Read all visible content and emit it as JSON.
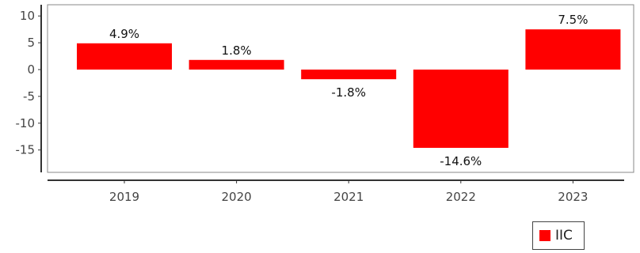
{
  "chart_data": {
    "type": "bar",
    "categories": [
      "2019",
      "2020",
      "2021",
      "2022",
      "2023"
    ],
    "series": [
      {
        "name": "IIC",
        "values": [
          4.9,
          1.8,
          -1.8,
          -14.6,
          7.5
        ]
      }
    ],
    "data_labels": [
      "4.9%",
      "1.8%",
      "-1.8%",
      "-14.6%",
      "7.5%"
    ],
    "ylim": [
      -19,
      12
    ],
    "y_ticks": [
      10,
      5,
      0,
      -5,
      -10,
      -15
    ],
    "grid": false,
    "legend_position": "bottom-right",
    "bar_color": "#ff0000"
  }
}
